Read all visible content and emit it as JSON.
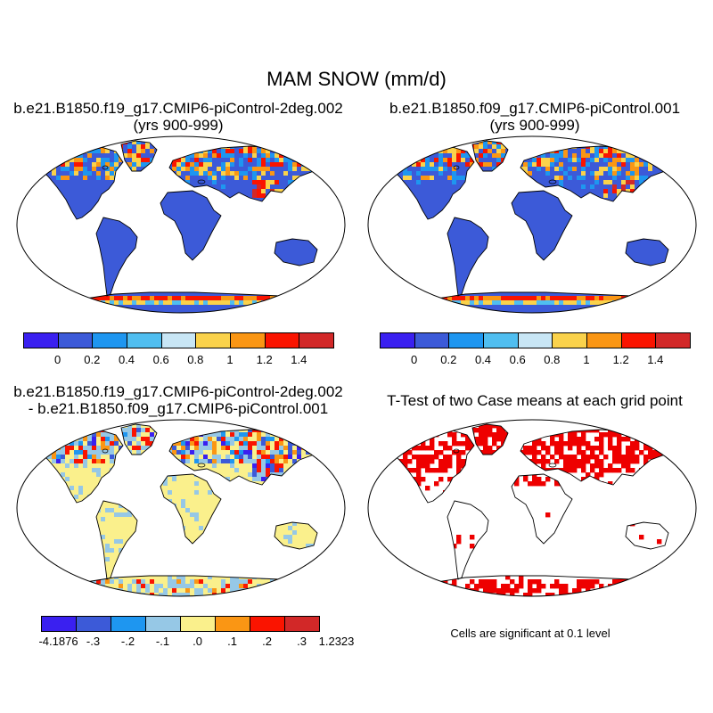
{
  "main_title": "MAM SNOW (mm/d)",
  "panels": [
    {
      "id": "p1",
      "title_lines": [
        "b.e21.B1850.f19_g17.CMIP6-piControl-2deg.002",
        "(yrs 900-999)"
      ],
      "kind": "field"
    },
    {
      "id": "p2",
      "title_lines": [
        "b.e21.B1850.f09_g17.CMIP6-piControl.001",
        "(yrs 900-999)"
      ],
      "kind": "field"
    },
    {
      "id": "p3",
      "title_lines": [
        "b.e21.B1850.f19_g17.CMIP6-piControl-2deg.002",
        "- b.e21.B1850.f09_g17.CMIP6-piControl.001"
      ],
      "kind": "difference"
    },
    {
      "id": "p4",
      "title_lines": [
        "T-Test of two Case means at each grid point"
      ],
      "kind": "ttest"
    }
  ],
  "colorbar_field": {
    "colors": [
      "#3A20F0",
      "#3C5AD8",
      "#1E96F0",
      "#50BEF0",
      "#C8E6F5",
      "#FAD24B",
      "#FA9614",
      "#FA1400",
      "#D22828"
    ],
    "labels": [
      "0",
      "0.2",
      "0.4",
      "0.6",
      "0.8",
      "1",
      "1.2",
      "1.4"
    ]
  },
  "colorbar_diff": {
    "colors": [
      "#3A20F0",
      "#3C5AD8",
      "#1E96F0",
      "#96C8E6",
      "#FAF08C",
      "#FA9614",
      "#FA1400",
      "#D22828"
    ],
    "labels": [
      "-4.1876",
      "-.3",
      "-.2",
      "-.1",
      ".0",
      ".1",
      ".2",
      ".3",
      "1.2323"
    ]
  },
  "significance_color": "#EE0000",
  "significance_note": "Cells are significant at 0.1 level"
}
